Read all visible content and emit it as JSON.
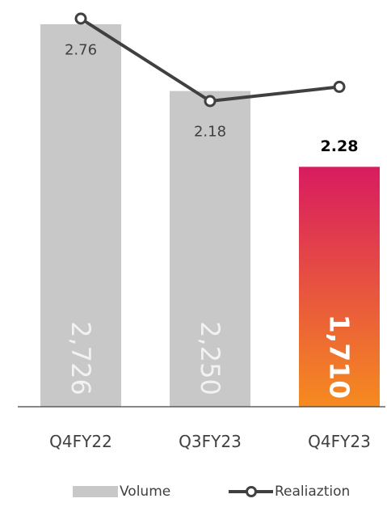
{
  "chart_data": {
    "type": "bar",
    "categories": [
      "Q4FY22",
      "Q3FY23",
      "Q4FY23"
    ],
    "series": [
      {
        "name": "Volume",
        "type": "bar",
        "values": [
          2726,
          2250,
          1710
        ],
        "value_labels": [
          "2,726",
          "2,250",
          "1,710"
        ]
      },
      {
        "name": "Realiaztion",
        "type": "line",
        "values": [
          2.76,
          2.18,
          2.28
        ],
        "value_labels": [
          "2.76",
          "2.18",
          "2.28"
        ]
      }
    ],
    "highlight_index": 2,
    "colors": {
      "bar": "#c8c8c8",
      "highlight_top": "#d81b60",
      "highlight_bottom": "#f68b1f",
      "line": "#404040",
      "axis": "#404040"
    },
    "legend": {
      "position": "bottom",
      "items": [
        {
          "label": "Volume",
          "kind": "bar-swatch"
        },
        {
          "label": "Realiaztion",
          "kind": "line-marker"
        }
      ]
    },
    "grid": false
  }
}
